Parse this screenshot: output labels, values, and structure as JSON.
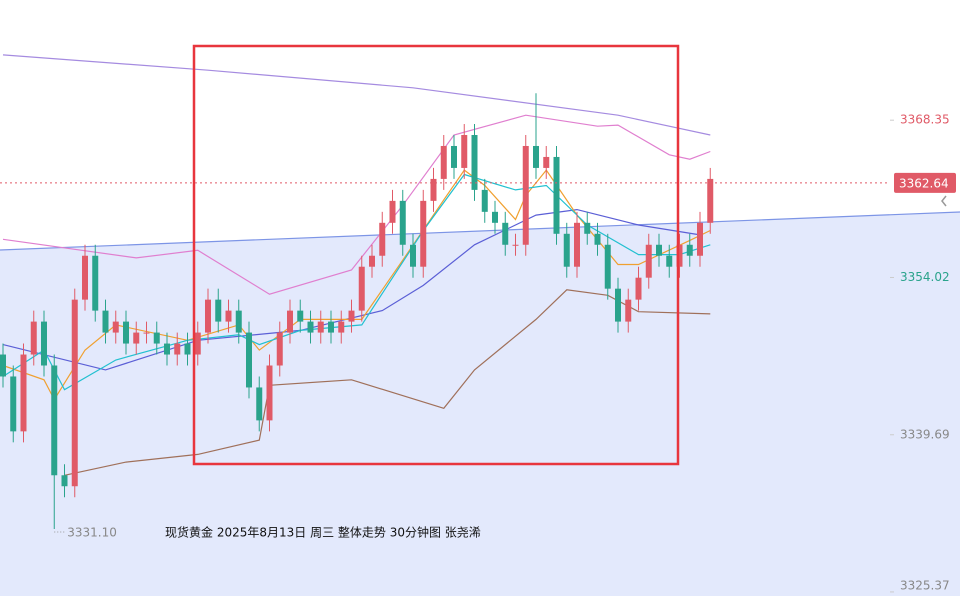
{
  "chart_data": {
    "type": "candlestick",
    "annotations": [
      "现货黄金  2025年8月13日 周三 整体走势 30分钟图 张尧浠"
    ],
    "ylim": [
      3325.0,
      3379.3
    ],
    "yticks": [
      3368.35,
      3354.02,
      3339.69,
      3325.37
    ],
    "ytick_colors": [
      "#e05a67",
      "#2aa38c",
      "#888888",
      "#888888"
    ],
    "up_color": "#e05a67",
    "down_color": "#2aa38c",
    "last_price": 3362.64,
    "low_label": {
      "index": 5,
      "value": 3331.1,
      "label": "3331.10"
    },
    "open": [
      3347,
      3345,
      3340,
      3347,
      3350,
      3346,
      3336,
      3335,
      3352,
      3356,
      3351,
      3349,
      3350,
      3348,
      3349,
      3349,
      3348,
      3347,
      3348,
      3347,
      3349,
      3352,
      3350,
      3351,
      3349,
      3344,
      3341,
      3346,
      3349,
      3351,
      3350,
      3349,
      3350,
      3349,
      3350,
      3351,
      3355,
      3356,
      3359,
      3361,
      3357,
      3355,
      3361,
      3363,
      3366,
      3364,
      3367,
      3362,
      3360,
      3359,
      3357,
      3357,
      3366,
      3364,
      3365,
      3358,
      3355,
      3359,
      3358,
      3357,
      3353,
      3350,
      3352,
      3354,
      3357,
      3356,
      3355,
      3357,
      3356,
      3359
    ],
    "high": [
      3348,
      3346,
      3348,
      3351,
      3351,
      3347,
      3337,
      3353,
      3357,
      3357,
      3352,
      3351,
      3351,
      3350,
      3350,
      3350,
      3349,
      3349,
      3349,
      3350,
      3353,
      3353,
      3352,
      3352,
      3350,
      3345,
      3347,
      3350,
      3352,
      3352,
      3351,
      3351,
      3351,
      3351,
      3352,
      3356,
      3357,
      3360,
      3362,
      3362,
      3358,
      3362,
      3364,
      3367,
      3367,
      3368,
      3368,
      3363,
      3361,
      3360,
      3358,
      3367,
      3370.8,
      3366,
      3366,
      3359,
      3360,
      3360,
      3359,
      3358,
      3354,
      3353,
      3355,
      3358,
      3358,
      3357,
      3358,
      3358,
      3360,
      3364
    ],
    "low": [
      3344,
      3339,
      3339,
      3346,
      3345,
      3331.1,
      3334,
      3334,
      3351,
      3350,
      3348,
      3348,
      3347,
      3347,
      3348,
      3347,
      3346,
      3346,
      3346,
      3346,
      3348,
      3349,
      3349,
      3348,
      3343,
      3340,
      3340,
      3345,
      3348,
      3349,
      3348,
      3348,
      3348,
      3348,
      3349,
      3350,
      3354,
      3355,
      3358,
      3356,
      3354,
      3354,
      3360,
      3362,
      3363,
      3363,
      3361,
      3359,
      3358,
      3356,
      3356,
      3356,
      3363,
      3363,
      3357,
      3354,
      3354,
      3357,
      3356,
      3352,
      3349,
      3349,
      3351,
      3353,
      3355,
      3354,
      3354,
      3355,
      3355,
      3358
    ],
    "close": [
      3345,
      3340,
      3347,
      3350,
      3346,
      3336,
      3335,
      3352,
      3356,
      3351,
      3349,
      3350,
      3348,
      3349,
      3349,
      3348,
      3347,
      3348,
      3347,
      3349,
      3352,
      3350,
      3351,
      3349,
      3344,
      3341,
      3346,
      3349,
      3351,
      3350,
      3349,
      3350,
      3349,
      3350,
      3351,
      3355,
      3356,
      3359,
      3361,
      3357,
      3355,
      3361,
      3363,
      3366,
      3364,
      3367,
      3362,
      3360,
      3359,
      3357,
      3357,
      3366,
      3364,
      3365,
      3358,
      3355,
      3359,
      3358,
      3357,
      3353,
      3350,
      3352,
      3354,
      3357,
      3356,
      3355,
      3357,
      3356,
      3359,
      3363
    ],
    "lines": [
      {
        "color": "#a58be0",
        "x": [
          0,
          20,
          40,
          60,
          69
        ],
        "values": [
          3374.3,
          3372.9,
          3371.3,
          3368.8,
          3367.0
        ]
      },
      {
        "color": "#e07fcf",
        "x": [
          0,
          13,
          19,
          26,
          34,
          39,
          44,
          51,
          58,
          60,
          65,
          67,
          69
        ],
        "values": [
          3357.5,
          3355.8,
          3356.5,
          3352.5,
          3354.7,
          3360.6,
          3367,
          3368.8,
          3367.8,
          3367.9,
          3365.2,
          3364.8,
          3365.5
        ]
      },
      {
        "color": "#5b5fd6",
        "x": [
          0,
          10,
          19,
          29,
          37,
          41,
          46,
          52,
          56,
          62,
          68
        ],
        "values": [
          3347.9,
          3345.6,
          3348.3,
          3349.2,
          3351,
          3353.3,
          3357,
          3359.7,
          3360.2,
          3358.8,
          3357.9
        ]
      },
      {
        "color": "#a0705a",
        "x": [
          6,
          12,
          19,
          25,
          26,
          34,
          43,
          46,
          52,
          55,
          59,
          62,
          69
        ],
        "values": [
          3336.0,
          3337.2,
          3337.9,
          3339.2,
          3344.2,
          3344.7,
          3342.1,
          3345.6,
          3350.2,
          3352.9,
          3352.4,
          3350.9,
          3350.7
        ]
      },
      {
        "color": "#f0a030",
        "x": [
          0,
          4,
          5,
          8,
          11,
          18,
          23,
          25,
          29,
          35,
          39,
          43,
          45,
          47,
          50,
          51,
          53,
          56,
          60,
          62,
          67,
          69
        ],
        "values": [
          3346.0,
          3344.7,
          3342.9,
          3347.4,
          3349.7,
          3348.3,
          3349.7,
          3347.4,
          3350.2,
          3350.2,
          3355.6,
          3361.1,
          3363.8,
          3362.4,
          3359.3,
          3361.5,
          3363.8,
          3359.7,
          3355.2,
          3355.2,
          3357.4,
          3358.3
        ]
      },
      {
        "color": "#22c0d0",
        "x": [
          0,
          4,
          6,
          11,
          18,
          23,
          25,
          29,
          35,
          41,
          45,
          50,
          53,
          57,
          62,
          66,
          69
        ],
        "values": [
          3345,
          3347.4,
          3343.8,
          3346.5,
          3348.3,
          3348.8,
          3347.9,
          3349.2,
          3349.7,
          3358.3,
          3363.4,
          3362,
          3362.4,
          3358.8,
          3356.1,
          3356.1,
          3357
        ]
      }
    ]
  }
}
